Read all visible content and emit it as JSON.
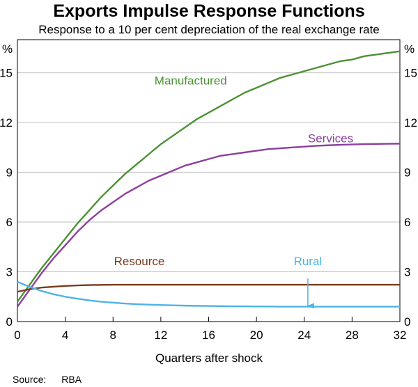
{
  "chart_data": {
    "type": "line",
    "title": "Exports Impulse Response Functions",
    "subtitle": "Response to a 10 per cent depreciation of the real exchange rate",
    "xlabel": "Quarters after shock",
    "ylabel_left": "%",
    "ylabel_right": "%",
    "xlim": [
      0,
      32
    ],
    "ylim": [
      0,
      17
    ],
    "xticks": [
      0,
      4,
      8,
      12,
      16,
      20,
      24,
      28,
      32
    ],
    "yticks": [
      0,
      3,
      6,
      9,
      12,
      15
    ],
    "grid": true,
    "x": [
      0,
      1,
      2,
      3,
      4,
      5,
      6,
      7,
      8,
      9,
      10,
      11,
      12,
      13,
      14,
      15,
      16,
      17,
      18,
      19,
      20,
      21,
      22,
      23,
      24,
      25,
      26,
      27,
      28,
      29,
      30,
      31,
      32
    ],
    "series": [
      {
        "name": "Manufactured",
        "color": "#4b9133",
        "values": [
          1.2,
          2.2,
          3.2,
          4.1,
          5.0,
          5.9,
          6.7,
          7.5,
          8.2,
          8.9,
          9.5,
          10.1,
          10.7,
          11.2,
          11.7,
          12.2,
          12.6,
          13.0,
          13.4,
          13.8,
          14.1,
          14.4,
          14.7,
          14.9,
          15.1,
          15.3,
          15.5,
          15.7,
          15.8,
          16.0,
          16.1,
          16.2,
          16.3
        ],
        "label_x": 14.5,
        "label_y": 14.3
      },
      {
        "name": "Services",
        "color": "#8b3f9e",
        "values": [
          0.9,
          1.9,
          2.9,
          3.8,
          4.6,
          5.4,
          6.1,
          6.7,
          7.2,
          7.7,
          8.1,
          8.5,
          8.8,
          9.1,
          9.4,
          9.6,
          9.8,
          10.0,
          10.1,
          10.2,
          10.3,
          10.4,
          10.45,
          10.5,
          10.55,
          10.6,
          10.63,
          10.66,
          10.68,
          10.7,
          10.71,
          10.72,
          10.73
        ],
        "label_x": 26.2,
        "label_y": 10.8
      },
      {
        "name": "Resource",
        "color": "#7a3a1e",
        "values": [
          1.8,
          1.95,
          2.05,
          2.1,
          2.15,
          2.18,
          2.2,
          2.21,
          2.22,
          2.22,
          2.22,
          2.22,
          2.22,
          2.22,
          2.22,
          2.22,
          2.22,
          2.22,
          2.22,
          2.22,
          2.22,
          2.22,
          2.22,
          2.22,
          2.22,
          2.22,
          2.22,
          2.22,
          2.22,
          2.22,
          2.22,
          2.22,
          2.22
        ],
        "label_x": 10.2,
        "label_y": 3.4
      },
      {
        "name": "Rural",
        "color": "#4cb4e6",
        "values": [
          2.4,
          2.1,
          1.85,
          1.65,
          1.5,
          1.38,
          1.28,
          1.2,
          1.14,
          1.09,
          1.05,
          1.02,
          1.0,
          0.98,
          0.96,
          0.95,
          0.94,
          0.93,
          0.92,
          0.92,
          0.91,
          0.91,
          0.9,
          0.9,
          0.9,
          0.9,
          0.9,
          0.9,
          0.9,
          0.9,
          0.9,
          0.9,
          0.9
        ],
        "label_x": 24.3,
        "label_y": 3.4,
        "arrow_from": [
          24.3,
          2.6
        ],
        "arrow_to": [
          24.3,
          0.95
        ]
      }
    ]
  },
  "source": {
    "label": "Source:",
    "value": "RBA"
  }
}
